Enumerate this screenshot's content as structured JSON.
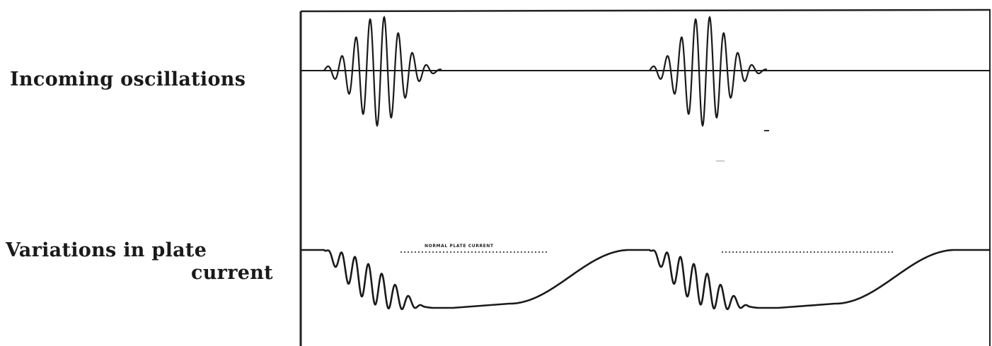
{
  "labels": {
    "top": "Incoming oscillations",
    "bottom_line1": "Variations in plate",
    "bottom_line2": "current",
    "normal_plate_current": "NORMAL PLATE CURRENT"
  },
  "colors": {
    "ink": "#1a1a1a",
    "background": "#ffffff",
    "dotted": "#555555"
  }
}
